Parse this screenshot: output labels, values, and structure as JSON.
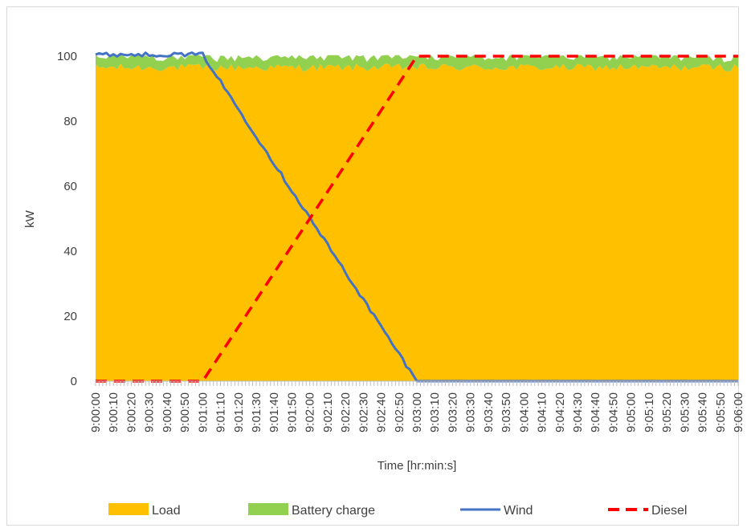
{
  "chart_data": {
    "type": "area",
    "xlabel": "Time [hr:min:s]",
    "ylabel": "kW",
    "ylim": [
      0,
      100
    ],
    "yticks": [
      0,
      20,
      40,
      60,
      80,
      100
    ],
    "x_start": "9:00:00",
    "x_end": "9:06:00",
    "x_step_seconds": 2,
    "xtick_labels": [
      "9:00:00",
      "9:00:10",
      "9:00:20",
      "9:00:30",
      "9:00:40",
      "9:00:50",
      "9:01:00",
      "9:01:10",
      "9:01:20",
      "9:01:30",
      "9:01:40",
      "9:01:50",
      "9:02:00",
      "9:02:10",
      "9:02:20",
      "9:02:30",
      "9:02:40",
      "9:02:50",
      "9:03:00",
      "9:03:10",
      "9:03:20",
      "9:03:30",
      "9:03:40",
      "9:03:50",
      "9:04:00",
      "9:04:10",
      "9:04:20",
      "9:04:30",
      "9:04:40",
      "9:04:50",
      "9:05:00",
      "9:05:10",
      "9:05:20",
      "9:05:30",
      "9:05:40",
      "9:05:50",
      "9:06:00"
    ],
    "grid": false,
    "legend_position": "bottom",
    "series": [
      {
        "name": "Load",
        "kind": "stacked-area",
        "color": "#FFC000",
        "description": "approximately constant, fluctuating between about 95 and 98",
        "keyframes": [
          [
            "9:00:00",
            96.5
          ],
          [
            "9:06:00",
            96.5
          ]
        ],
        "noise": 1.2
      },
      {
        "name": "Battery charge",
        "kind": "stacked-area",
        "color": "#92D050",
        "description": "thin band stacked on Load up to about 100",
        "keyframes": [
          [
            "9:00:00",
            3.5
          ],
          [
            "9:06:00",
            3.5
          ]
        ],
        "noise": 1.0
      },
      {
        "name": "Wind",
        "kind": "line",
        "color": "#4472C4",
        "style": "solid",
        "keyframes": [
          [
            "9:00:00",
            100.5
          ],
          [
            "9:01:00",
            100.5
          ],
          [
            "9:03:00",
            0
          ],
          [
            "9:06:00",
            0
          ]
        ],
        "noise": 0.6
      },
      {
        "name": "Diesel",
        "kind": "line",
        "color": "#FF0000",
        "style": "dashed",
        "keyframes": [
          [
            "9:00:00",
            0
          ],
          [
            "9:01:00",
            0
          ],
          [
            "9:03:00",
            100
          ],
          [
            "9:06:00",
            100
          ]
        ],
        "noise": 0
      }
    ]
  }
}
